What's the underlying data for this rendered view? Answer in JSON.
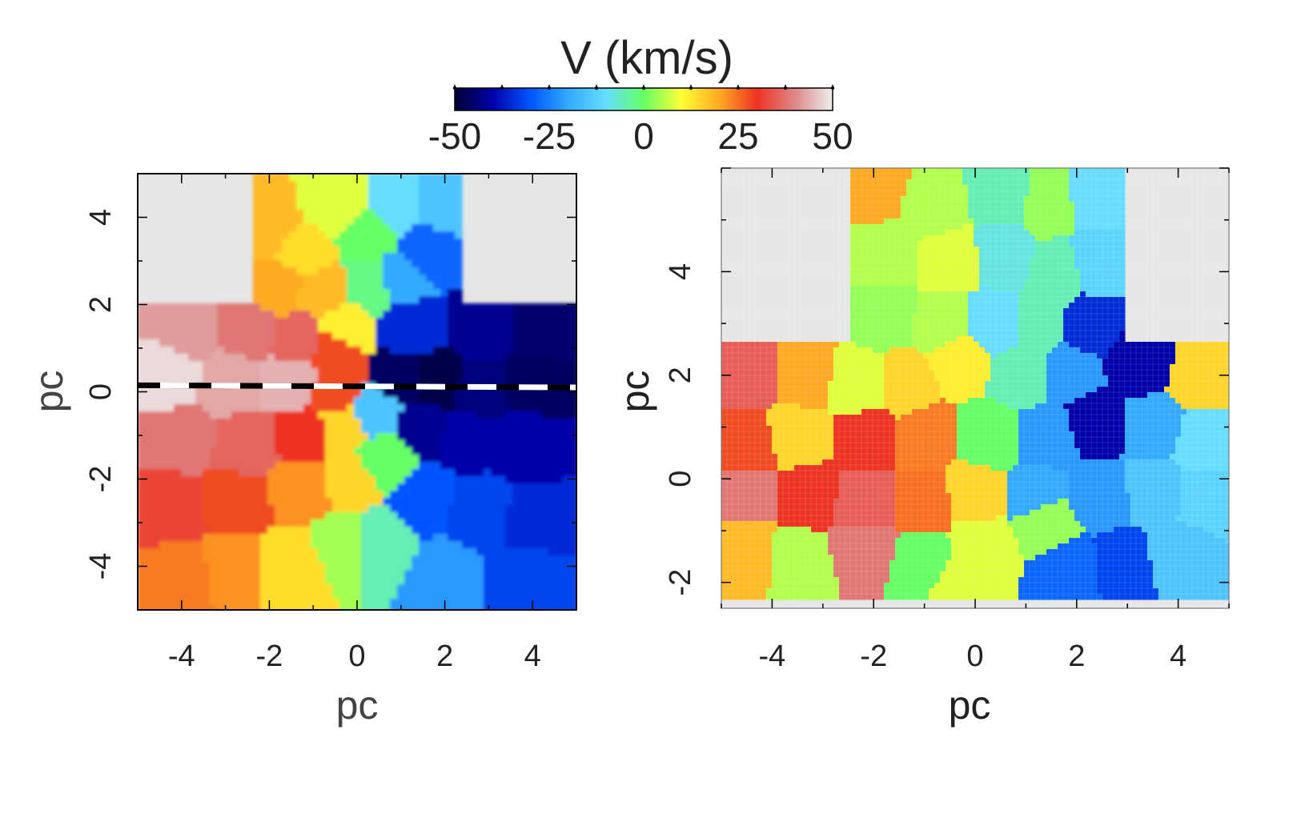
{
  "colorbar": {
    "title": "V (km/s)",
    "ticks": [
      "-50",
      "-25",
      "0",
      "25",
      "50"
    ],
    "range": [
      -50,
      50
    ],
    "colormap": [
      "#000033",
      "#0000aa",
      "#0055ff",
      "#33aaff",
      "#66ddff",
      "#66ff66",
      "#ffff33",
      "#ffaa22",
      "#ee3322",
      "#dd8888",
      "#eeeeee"
    ]
  },
  "chart_data": [
    {
      "type": "heatmap",
      "title": "",
      "xlabel": "pc",
      "ylabel": "pc",
      "xlim": [
        -5,
        5
      ],
      "ylim": [
        -5,
        5
      ],
      "xticks": [
        "-4",
        "-2",
        "0",
        "2",
        "4"
      ],
      "yticks": [
        "-4",
        "-2",
        "0",
        "2",
        "4"
      ],
      "masked_color": "#e6e6e6",
      "line": {
        "style": "black/white dashed",
        "x": [
          -5,
          5
        ],
        "y": [
          0.15,
          0.1
        ]
      },
      "cells": [
        {
          "x": -3.8,
          "y": 1.5,
          "v": 42
        },
        {
          "x": -2.5,
          "y": 1.5,
          "v": 38
        },
        {
          "x": -1.3,
          "y": 1.2,
          "v": 36
        },
        {
          "x": -0.5,
          "y": 1.0,
          "v": 28
        },
        {
          "x": -4.3,
          "y": 0.3,
          "v": 48
        },
        {
          "x": -2.9,
          "y": 0.2,
          "v": 43
        },
        {
          "x": -1.5,
          "y": 0.2,
          "v": 44
        },
        {
          "x": -0.5,
          "y": 0.0,
          "v": 28
        },
        {
          "x": -4.0,
          "y": -1.0,
          "v": 38
        },
        {
          "x": -2.5,
          "y": -1.2,
          "v": 36
        },
        {
          "x": -1.2,
          "y": -1.0,
          "v": 30
        },
        {
          "x": -0.3,
          "y": -0.8,
          "v": 15
        },
        {
          "x": -4.2,
          "y": -2.7,
          "v": 32
        },
        {
          "x": -2.8,
          "y": -2.5,
          "v": 28
        },
        {
          "x": -1.2,
          "y": -2.2,
          "v": 22
        },
        {
          "x": -0.2,
          "y": -2.0,
          "v": 15
        },
        {
          "x": -4.0,
          "y": -4.2,
          "v": 24
        },
        {
          "x": -2.8,
          "y": -4.0,
          "v": 22
        },
        {
          "x": -1.5,
          "y": -4.0,
          "v": 14
        },
        {
          "x": -0.3,
          "y": -3.5,
          "v": 4
        },
        {
          "x": 0.5,
          "y": -3.5,
          "v": -5
        },
        {
          "x": 0.6,
          "y": -1.5,
          "v": 0
        },
        {
          "x": 0.4,
          "y": -0.5,
          "v": -15
        },
        {
          "x": 1.0,
          "y": 0.3,
          "v": -46
        },
        {
          "x": 1.8,
          "y": 0.2,
          "v": -48
        },
        {
          "x": 2.8,
          "y": 0.0,
          "v": -44
        },
        {
          "x": 4.0,
          "y": 0.2,
          "v": -46
        },
        {
          "x": 1.5,
          "y": -0.8,
          "v": -42
        },
        {
          "x": 2.5,
          "y": -1.0,
          "v": -40
        },
        {
          "x": 3.8,
          "y": -1.2,
          "v": -40
        },
        {
          "x": 1.2,
          "y": 1.5,
          "v": -35
        },
        {
          "x": 2.8,
          "y": 1.5,
          "v": -42
        },
        {
          "x": 4.2,
          "y": 1.5,
          "v": -45
        },
        {
          "x": 1.5,
          "y": -2.5,
          "v": -30
        },
        {
          "x": 2.8,
          "y": -2.8,
          "v": -32
        },
        {
          "x": 4.0,
          "y": -3.0,
          "v": -35
        },
        {
          "x": 2.0,
          "y": -4.2,
          "v": -22
        },
        {
          "x": 3.8,
          "y": -4.2,
          "v": -32
        },
        {
          "x": -2.0,
          "y": 3.8,
          "v": 18
        },
        {
          "x": -1.2,
          "y": 3.2,
          "v": 14
        },
        {
          "x": -1.8,
          "y": 2.4,
          "v": 20
        },
        {
          "x": -0.8,
          "y": 2.3,
          "v": 18
        },
        {
          "x": -0.5,
          "y": 4.2,
          "v": 8
        },
        {
          "x": 0.2,
          "y": 3.5,
          "v": 0
        },
        {
          "x": 0.3,
          "y": 2.5,
          "v": -2
        },
        {
          "x": 1.0,
          "y": 4.3,
          "v": -10
        },
        {
          "x": 1.6,
          "y": 3.2,
          "v": -28
        },
        {
          "x": 1.0,
          "y": 2.6,
          "v": -20
        },
        {
          "x": 1.9,
          "y": 4.3,
          "v": -15
        },
        {
          "x": -0.3,
          "y": 1.4,
          "v": 12
        }
      ]
    },
    {
      "type": "heatmap",
      "title": "",
      "xlabel": "pc",
      "ylabel": "pc",
      "xlim": [
        -5,
        5
      ],
      "ylim": [
        -2.5,
        6
      ],
      "xticks": [
        "-4",
        "-2",
        "0",
        "2",
        "4"
      ],
      "yticks": [
        "-2",
        "0",
        "2",
        "4"
      ],
      "masked_color": "#e6e6e6",
      "cells": [
        {
          "x": -2.0,
          "y": 5.6,
          "v": 20
        },
        {
          "x": -0.8,
          "y": 5.3,
          "v": 5
        },
        {
          "x": 0.5,
          "y": 5.5,
          "v": -5
        },
        {
          "x": 1.5,
          "y": 5.3,
          "v": 3
        },
        {
          "x": 2.3,
          "y": 5.4,
          "v": -10
        },
        {
          "x": -1.8,
          "y": 4.3,
          "v": 5
        },
        {
          "x": -0.5,
          "y": 4.2,
          "v": 8
        },
        {
          "x": 0.6,
          "y": 4.3,
          "v": -8
        },
        {
          "x": 1.6,
          "y": 4.0,
          "v": -5
        },
        {
          "x": 2.4,
          "y": 4.2,
          "v": -12
        },
        {
          "x": -1.8,
          "y": 3.2,
          "v": 3
        },
        {
          "x": -0.6,
          "y": 3.0,
          "v": 5
        },
        {
          "x": 0.4,
          "y": 3.0,
          "v": -10
        },
        {
          "x": 1.3,
          "y": 3.0,
          "v": -5
        },
        {
          "x": 2.2,
          "y": 2.9,
          "v": -35
        },
        {
          "x": -4.5,
          "y": 2.0,
          "v": 35
        },
        {
          "x": -3.4,
          "y": 2.0,
          "v": 20
        },
        {
          "x": -2.3,
          "y": 1.8,
          "v": 8
        },
        {
          "x": -1.4,
          "y": 1.8,
          "v": 15
        },
        {
          "x": -0.3,
          "y": 2.3,
          "v": 12
        },
        {
          "x": 0.9,
          "y": 2.0,
          "v": -5
        },
        {
          "x": 1.9,
          "y": 2.1,
          "v": -22
        },
        {
          "x": 3.2,
          "y": 2.2,
          "v": -40
        },
        {
          "x": 4.5,
          "y": 1.9,
          "v": 15
        },
        {
          "x": -4.5,
          "y": 0.6,
          "v": 28
        },
        {
          "x": -3.5,
          "y": 0.8,
          "v": 15
        },
        {
          "x": -2.1,
          "y": 0.8,
          "v": 30
        },
        {
          "x": -1.0,
          "y": 0.8,
          "v": 24
        },
        {
          "x": 0.3,
          "y": 0.8,
          "v": 0
        },
        {
          "x": 1.4,
          "y": 0.8,
          "v": -22
        },
        {
          "x": 2.4,
          "y": 1.1,
          "v": -40
        },
        {
          "x": 3.5,
          "y": 1.0,
          "v": -20
        },
        {
          "x": 4.5,
          "y": 0.7,
          "v": -10
        },
        {
          "x": -4.5,
          "y": -0.2,
          "v": 38
        },
        {
          "x": -3.3,
          "y": -0.3,
          "v": 30
        },
        {
          "x": -2.2,
          "y": -0.5,
          "v": 35
        },
        {
          "x": -1.0,
          "y": -0.5,
          "v": 25
        },
        {
          "x": 0.0,
          "y": -0.3,
          "v": 15
        },
        {
          "x": 1.2,
          "y": -0.3,
          "v": -20
        },
        {
          "x": 2.4,
          "y": -0.3,
          "v": -22
        },
        {
          "x": 3.6,
          "y": -0.2,
          "v": -15
        },
        {
          "x": 4.5,
          "y": -0.3,
          "v": -12
        },
        {
          "x": -4.5,
          "y": -1.5,
          "v": 18
        },
        {
          "x": -3.5,
          "y": -1.6,
          "v": 5
        },
        {
          "x": -2.2,
          "y": -1.3,
          "v": 38
        },
        {
          "x": -1.0,
          "y": -1.6,
          "v": 0
        },
        {
          "x": 0.1,
          "y": -1.3,
          "v": 8
        },
        {
          "x": 1.4,
          "y": -0.8,
          "v": 3
        },
        {
          "x": 1.9,
          "y": -1.8,
          "v": -28
        },
        {
          "x": 2.9,
          "y": -1.7,
          "v": -32
        },
        {
          "x": 4.0,
          "y": -1.5,
          "v": -15
        },
        {
          "x": -0.3,
          "y": -2.0,
          "v": 8
        }
      ]
    }
  ]
}
